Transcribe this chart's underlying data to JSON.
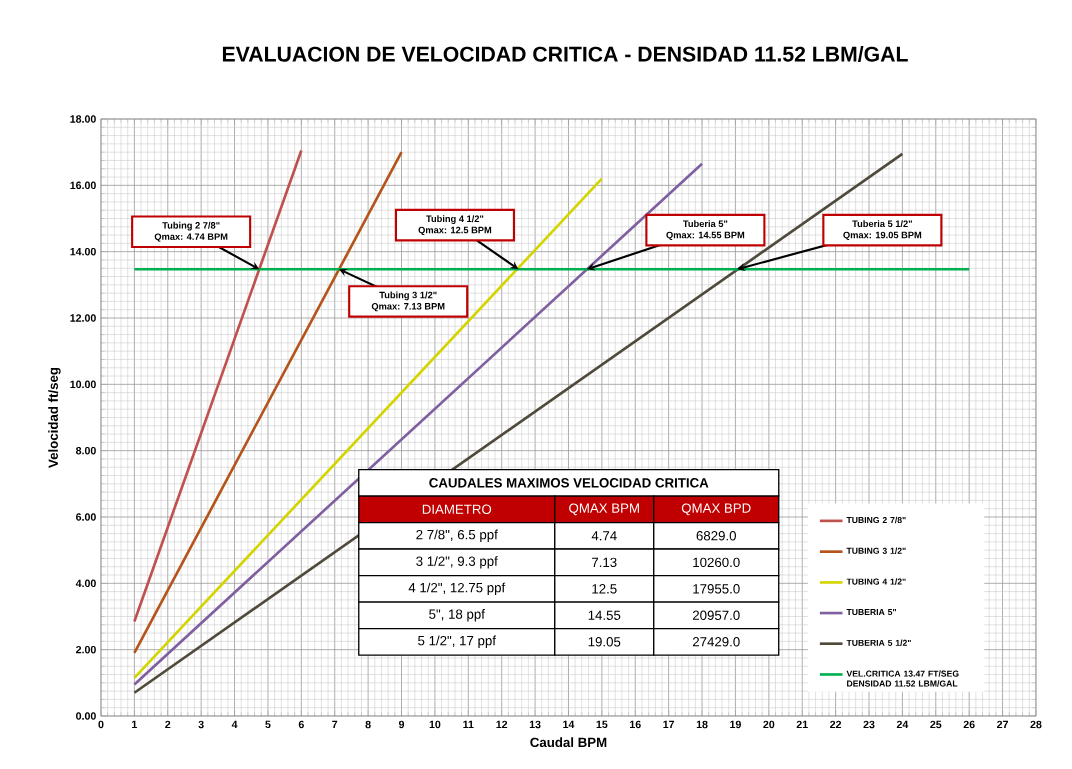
{
  "chart_data": {
    "type": "line",
    "title": "EVALUACION DE VELOCIDAD CRITICA  - DENSIDAD 11.52 LBM/GAL",
    "xlabel": "Caudal BPM",
    "ylabel": "Velocidad ft/seg",
    "xlim": [
      0,
      28
    ],
    "xticks": [
      0,
      1,
      2,
      3,
      4,
      5,
      6,
      7,
      8,
      9,
      10,
      11,
      12,
      13,
      14,
      15,
      16,
      17,
      18,
      19,
      20,
      21,
      22,
      23,
      24,
      25,
      26,
      27,
      28
    ],
    "ylim": [
      0,
      18
    ],
    "yticks": [
      {
        "value": 0,
        "label": "0.00"
      },
      {
        "value": 2,
        "label": "2.00"
      },
      {
        "value": 4,
        "label": "4.00"
      },
      {
        "value": 6,
        "label": "6.00"
      },
      {
        "value": 8,
        "label": "8.00"
      },
      {
        "value": 10,
        "label": "10.00"
      },
      {
        "value": 12,
        "label": "12.00"
      },
      {
        "value": 14,
        "label": "14.00"
      },
      {
        "value": 16,
        "label": "16.00"
      },
      {
        "value": 18,
        "label": "18.00"
      }
    ],
    "grid": true,
    "legend": "bottom right",
    "line_style": "solid",
    "series": [
      {
        "name": "TUBING 2 7/8\"",
        "color": "#c0504d",
        "x": [
          1,
          6
        ],
        "values": [
          2.85,
          17.05
        ]
      },
      {
        "name": "TUBING 3 1/2\"",
        "color": "#b5541a",
        "x": [
          1,
          9
        ],
        "values": [
          1.9,
          17.0
        ]
      },
      {
        "name": "TUBING 4 1/2\"",
        "color": "#d4d400",
        "x": [
          1,
          15
        ],
        "values": [
          1.15,
          16.2
        ]
      },
      {
        "name": "TUBERIA 5\"",
        "color": "#7f5f9f",
        "x": [
          1,
          18
        ],
        "values": [
          0.95,
          16.65
        ]
      },
      {
        "name": "TUBERIA 5 1/2\"",
        "color": "#4f4a3a",
        "x": [
          1,
          24
        ],
        "values": [
          0.7,
          16.95
        ]
      },
      {
        "name": "VEL.CRITICA 13.47 FT/SEG DENSIDAD 11.52 LBM/GAL",
        "color": "#00b050",
        "x": [
          1,
          26
        ],
        "values": [
          13.47,
          13.47
        ]
      }
    ],
    "annotations": [
      {
        "text": "Tubing 2 7/8\"",
        "x": 4.74,
        "y": 13.47
      },
      "Qmax: 4.74 BPM",
      {
        "text": "Tubing 3 1/2\"",
        "x": 7.13,
        "y": 13.47
      },
      "Qmax: 7.13 BPM",
      {
        "text": "Tubing 4 1/2\"",
        "x": 12.5,
        "y": 13.47
      },
      "Qmax: 12.5 BPM",
      {
        "text": "Tuberia 5\"",
        "x": 14.55,
        "y": 13.47
      },
      "Qmax: 14.55 BPM",
      {
        "text": "Tuberia 5 1/2\"",
        "x": 19.05,
        "y": 13.47
      },
      "Qmax: 19.05 BPM",
      "CAUDALES MAXIMOS VELOCIDAD CRITICA",
      "DIAMETRO",
      "QMAX BPM",
      "QMAX BPD",
      "2 7/8\", 6.5 ppf",
      "4.74",
      "6829.0",
      "3 1/2\", 9.3 ppf",
      "7.13",
      "10260.0",
      "4 1/2\", 12.75 ppf",
      "12.5",
      "17955.0",
      "5\", 18 ppf",
      "14.55",
      "20957.0",
      "5 1/2\", 17 ppf",
      "19.05",
      "27429.0"
    ]
  }
}
